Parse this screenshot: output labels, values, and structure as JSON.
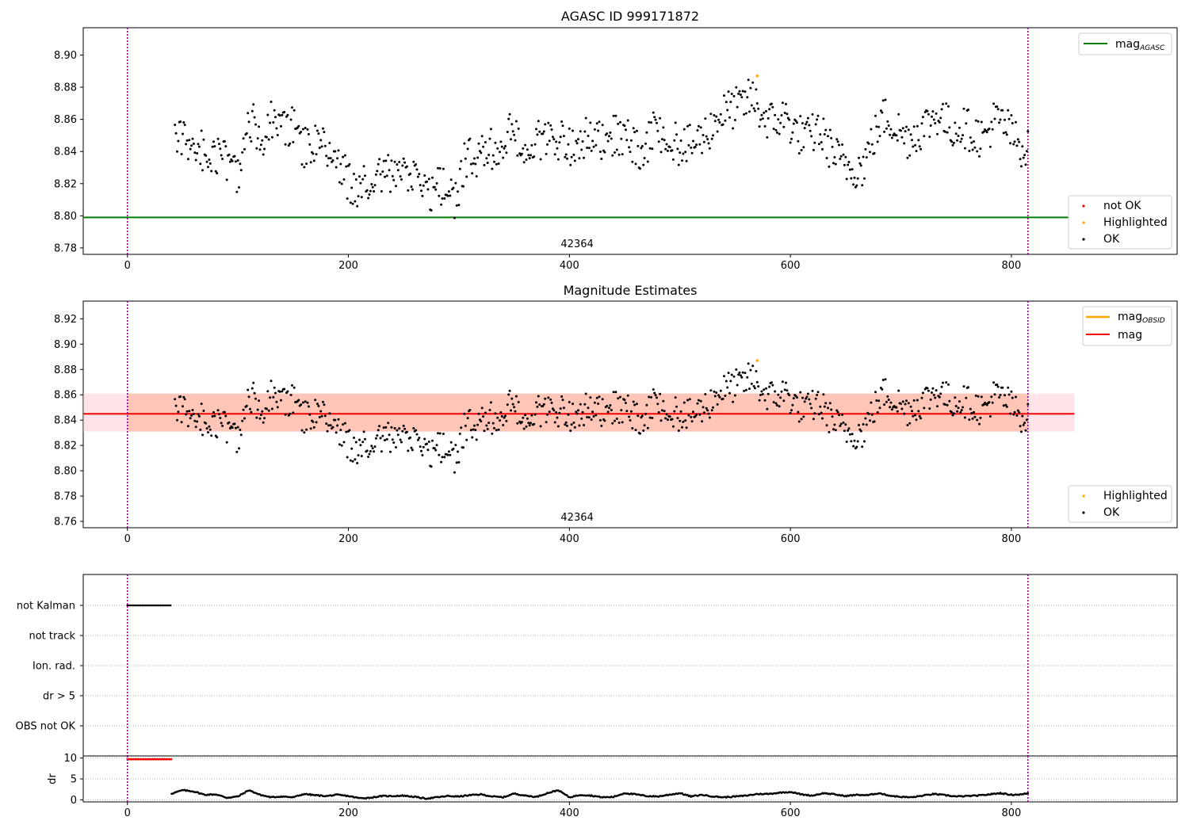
{
  "colors": {
    "ok": "#000000",
    "not_ok": "#ff0000",
    "highlighted": "#ffa500",
    "agasc_line": "#008000",
    "mag_line": "#ff0000",
    "obsid_line": "#ffa500",
    "band_outer": "#ffc0cb",
    "band_inner": "#ffa07a",
    "vline": "#800080"
  },
  "chart_data": [
    {
      "type": "scatter",
      "id": "agasc",
      "title": "AGASC ID 999171872",
      "xlim": [
        -40,
        950
      ],
      "ylim": [
        8.776,
        8.917
      ],
      "xticks": [
        0,
        200,
        400,
        600,
        800
      ],
      "yticks": [
        8.78,
        8.8,
        8.82,
        8.84,
        8.86,
        8.88,
        8.9
      ],
      "vlines": [
        0,
        815
      ],
      "obsid_label": {
        "x": 407,
        "text": "42364"
      },
      "hline": {
        "y": 8.799,
        "x_range": [
          -40,
          857
        ],
        "label": "mag",
        "label_sub": "AGASC"
      },
      "highlight_point": {
        "x": 570,
        "y": 8.887
      },
      "legend_points": [
        {
          "label": "not OK",
          "color_key": "not_ok"
        },
        {
          "label": "Highlighted",
          "color_key": "highlighted"
        },
        {
          "label": "OK",
          "color_key": "ok"
        }
      ],
      "series_source": "mag_series"
    },
    {
      "type": "scatter",
      "id": "estimates",
      "title": "Magnitude Estimates",
      "xlim": [
        -40,
        950
      ],
      "ylim": [
        8.755,
        8.934
      ],
      "xticks": [
        0,
        200,
        400,
        600,
        800
      ],
      "yticks": [
        8.76,
        8.78,
        8.8,
        8.82,
        8.84,
        8.86,
        8.88,
        8.9,
        8.92
      ],
      "vlines": [
        0,
        815
      ],
      "obsid_label": {
        "x": 407,
        "text": "42364"
      },
      "mag_level": 8.845,
      "outer_band": {
        "y0": 8.831,
        "y1": 8.861,
        "x_range": [
          -40,
          857
        ]
      },
      "inner_band": {
        "y0": 8.831,
        "y1": 8.861,
        "x_range": [
          0,
          815
        ]
      },
      "highlight_point": {
        "x": 570,
        "y": 8.887
      },
      "legend_lines": [
        {
          "label": "mag",
          "label_sub": "OBSID",
          "color_key": "obsid_line"
        },
        {
          "label": "mag",
          "label_sub": "",
          "color_key": "mag_line"
        }
      ],
      "legend_points": [
        {
          "label": "Highlighted",
          "color_key": "highlighted"
        },
        {
          "label": "OK",
          "color_key": "ok"
        }
      ],
      "series_source": "mag_series"
    },
    {
      "type": "scatter",
      "id": "flags",
      "title": "",
      "xlim": [
        -40,
        950
      ],
      "categories": [
        "not Kalman",
        "not track",
        "Ion. rad.",
        "dr > 5",
        "OBS not OK"
      ],
      "flag_ranges": {
        "not Kalman": [
          0,
          40
        ]
      },
      "vlines": [
        0,
        815
      ]
    },
    {
      "type": "scatter",
      "id": "dr",
      "title": "",
      "ylabel": "dr",
      "xlim": [
        -40,
        950
      ],
      "ylim": [
        -0.5,
        10.5
      ],
      "xticks": [
        0,
        200,
        400,
        600,
        800
      ],
      "yticks": [
        0,
        5,
        10
      ],
      "vlines": [
        0,
        815
      ],
      "red_range": {
        "x_range": [
          0,
          40
        ],
        "y": 9.7
      },
      "series_source": "dr_series"
    }
  ],
  "mag_series": [
    [
      43,
      8.848,
      "M"
    ],
    [
      55,
      8.846,
      "M"
    ],
    [
      65,
      8.841,
      "M"
    ],
    [
      75,
      8.839,
      "M"
    ],
    [
      85,
      8.836,
      "M"
    ],
    [
      95,
      8.832,
      "M"
    ],
    [
      102,
      8.822,
      "M"
    ],
    [
      110,
      8.862,
      "M"
    ],
    [
      120,
      8.848,
      "M"
    ],
    [
      130,
      8.858,
      "M"
    ],
    [
      140,
      8.852,
      "M"
    ],
    [
      150,
      8.856,
      "M"
    ],
    [
      160,
      8.842,
      "M"
    ],
    [
      170,
      8.846,
      "M"
    ],
    [
      180,
      8.843,
      "M"
    ],
    [
      190,
      8.832,
      "M"
    ],
    [
      200,
      8.822,
      "M"
    ],
    [
      210,
      8.815,
      "M"
    ],
    [
      220,
      8.825,
      "M"
    ],
    [
      230,
      8.828,
      "M"
    ],
    [
      240,
      8.823,
      "M"
    ],
    [
      250,
      8.826,
      "M"
    ],
    [
      260,
      8.821,
      "M"
    ],
    [
      270,
      8.812,
      "M"
    ],
    [
      280,
      8.818,
      "M"
    ],
    [
      290,
      8.816,
      "M"
    ],
    [
      297,
      8.81,
      "M"
    ],
    [
      305,
      8.834,
      "M"
    ],
    [
      315,
      8.836,
      "M"
    ],
    [
      325,
      8.839,
      "M"
    ],
    [
      335,
      8.844,
      "M"
    ],
    [
      345,
      8.852,
      "M"
    ],
    [
      355,
      8.845,
      "M"
    ],
    [
      365,
      8.843,
      "M"
    ],
    [
      375,
      8.848,
      "M"
    ],
    [
      385,
      8.852,
      "M"
    ],
    [
      395,
      8.844,
      "M"
    ],
    [
      405,
      8.842,
      "M"
    ],
    [
      415,
      8.848,
      "M"
    ],
    [
      425,
      8.846,
      "M"
    ],
    [
      435,
      8.852,
      "M"
    ],
    [
      445,
      8.848,
      "M"
    ],
    [
      455,
      8.846,
      "M"
    ],
    [
      465,
      8.836,
      "M"
    ],
    [
      475,
      8.852,
      "M"
    ],
    [
      485,
      8.852,
      "M"
    ],
    [
      495,
      8.846,
      "M"
    ],
    [
      505,
      8.842,
      "M"
    ],
    [
      515,
      8.846,
      "M"
    ],
    [
      525,
      8.852,
      "M"
    ],
    [
      535,
      8.862,
      "M"
    ],
    [
      545,
      8.866,
      "M"
    ],
    [
      555,
      8.868,
      "M"
    ],
    [
      565,
      8.874,
      "M"
    ],
    [
      575,
      8.862,
      "M"
    ],
    [
      585,
      8.858,
      "M"
    ],
    [
      595,
      8.862,
      "M"
    ],
    [
      605,
      8.852,
      "M"
    ],
    [
      615,
      8.848,
      "M"
    ],
    [
      625,
      8.854,
      "M"
    ],
    [
      635,
      8.843,
      "M"
    ],
    [
      645,
      8.834,
      "M"
    ],
    [
      655,
      8.83,
      "M"
    ],
    [
      665,
      8.83,
      "M"
    ],
    [
      675,
      8.848,
      "M"
    ],
    [
      685,
      8.862,
      "M"
    ],
    [
      695,
      8.856,
      "M"
    ],
    [
      705,
      8.848,
      "M"
    ],
    [
      715,
      8.852,
      "M"
    ],
    [
      725,
      8.858,
      "M"
    ],
    [
      735,
      8.864,
      "M"
    ],
    [
      745,
      8.854,
      "M"
    ],
    [
      755,
      8.856,
      "M"
    ],
    [
      765,
      8.852,
      "M"
    ],
    [
      775,
      8.848,
      "M"
    ],
    [
      785,
      8.86,
      "M"
    ],
    [
      795,
      8.856,
      "M"
    ],
    [
      805,
      8.846,
      "M"
    ],
    [
      815,
      8.84,
      "M"
    ]
  ],
  "dr_series": [
    [
      40,
      1.5
    ],
    [
      50,
      2.3
    ],
    [
      60,
      2.0
    ],
    [
      70,
      1.2
    ],
    [
      80,
      1.3
    ],
    [
      90,
      0.5
    ],
    [
      100,
      0.8
    ],
    [
      110,
      2.3
    ],
    [
      120,
      1.2
    ],
    [
      130,
      0.6
    ],
    [
      140,
      0.8
    ],
    [
      150,
      0.6
    ],
    [
      160,
      1.4
    ],
    [
      170,
      1.1
    ],
    [
      180,
      0.9
    ],
    [
      190,
      1.2
    ],
    [
      200,
      0.9
    ],
    [
      210,
      0.4
    ],
    [
      220,
      0.5
    ],
    [
      230,
      0.9
    ],
    [
      240,
      0.9
    ],
    [
      250,
      1.0
    ],
    [
      260,
      0.7
    ],
    [
      270,
      0.3
    ],
    [
      280,
      0.6
    ],
    [
      290,
      0.9
    ],
    [
      300,
      0.8
    ],
    [
      310,
      1.1
    ],
    [
      320,
      1.3
    ],
    [
      330,
      0.8
    ],
    [
      340,
      0.6
    ],
    [
      350,
      1.5
    ],
    [
      360,
      1.0
    ],
    [
      370,
      0.7
    ],
    [
      380,
      1.6
    ],
    [
      390,
      2.3
    ],
    [
      400,
      0.6
    ],
    [
      410,
      1.2
    ],
    [
      420,
      1.0
    ],
    [
      430,
      0.6
    ],
    [
      440,
      0.7
    ],
    [
      450,
      1.6
    ],
    [
      460,
      1.3
    ],
    [
      470,
      0.9
    ],
    [
      480,
      0.8
    ],
    [
      490,
      1.2
    ],
    [
      500,
      1.6
    ],
    [
      510,
      0.8
    ],
    [
      520,
      1.2
    ],
    [
      530,
      0.8
    ],
    [
      540,
      0.6
    ],
    [
      550,
      0.8
    ],
    [
      560,
      1.0
    ],
    [
      570,
      1.4
    ],
    [
      580,
      1.4
    ],
    [
      590,
      1.7
    ],
    [
      600,
      1.9
    ],
    [
      610,
      1.3
    ],
    [
      620,
      1.0
    ],
    [
      630,
      1.6
    ],
    [
      640,
      1.3
    ],
    [
      650,
      0.9
    ],
    [
      660,
      1.2
    ],
    [
      670,
      1.1
    ],
    [
      680,
      1.6
    ],
    [
      690,
      1.0
    ],
    [
      700,
      0.7
    ],
    [
      710,
      0.6
    ],
    [
      720,
      1.0
    ],
    [
      730,
      1.4
    ],
    [
      740,
      1.1
    ],
    [
      750,
      0.8
    ],
    [
      760,
      0.9
    ],
    [
      770,
      1.0
    ],
    [
      780,
      1.3
    ],
    [
      790,
      1.6
    ],
    [
      800,
      1.2
    ],
    [
      810,
      1.3
    ],
    [
      815,
      1.6
    ]
  ],
  "legend_text": {
    "not_ok": "not OK",
    "highlighted": "Highlighted",
    "ok": "OK"
  }
}
